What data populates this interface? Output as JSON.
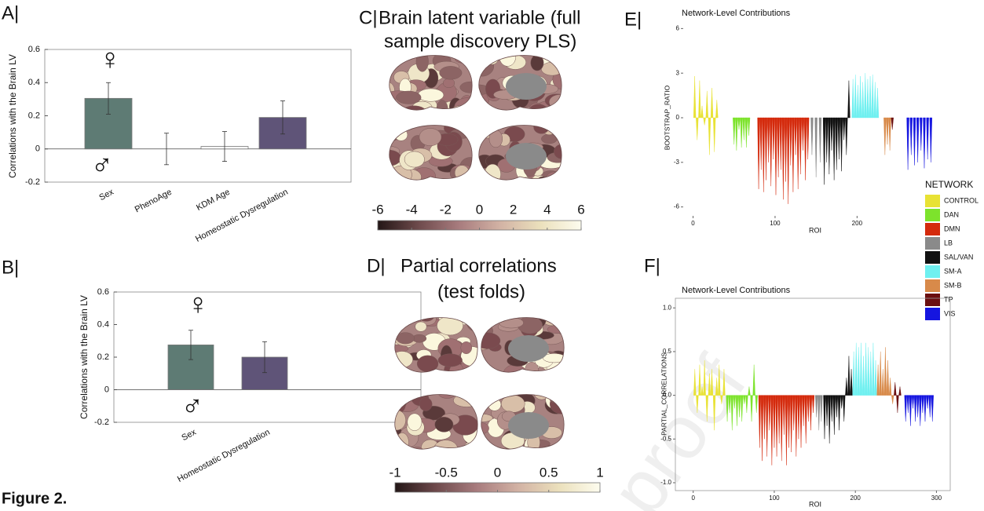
{
  "figure_label": "Figure 2.",
  "watermark": "proof",
  "chart_data": [
    {
      "panel_label": "A|",
      "type": "bar",
      "ylabel": "Correlations with the Brain LV",
      "categories": [
        "Sex",
        "PhenoAge",
        "KDM Age",
        "Homeostatic Dysregulation"
      ],
      "values": [
        0.305,
        0,
        0.015,
        0.19
      ],
      "errors": [
        0.095,
        0.095,
        0.09,
        0.1
      ],
      "colors": [
        "#5e7b74",
        "#ffffff",
        "#ffffff",
        "#5f5478"
      ],
      "ylim": [
        -0.2,
        0.6
      ],
      "yticks": [
        -0.2,
        0,
        0.2,
        0.4,
        0.6
      ],
      "annotations": [
        "♀",
        "♂"
      ]
    },
    {
      "panel_label": "B|",
      "type": "bar",
      "ylabel": "Correlations with the Brain LV",
      "categories": [
        "Sex",
        "Homeostatic Dysregulation"
      ],
      "values": [
        0.275,
        0.2
      ],
      "errors": [
        0.09,
        0.095
      ],
      "colors": [
        "#5e7b74",
        "#5f5478"
      ],
      "ylim": [
        -0.2,
        0.6
      ],
      "yticks": [
        -0.2,
        0,
        0.2,
        0.4,
        0.6
      ],
      "annotations": [
        "♀",
        "♂"
      ]
    },
    {
      "panel_label": "C|",
      "type": "colorbar",
      "title_lines": [
        "Brain latent variable (full",
        "sample discovery PLS)"
      ],
      "xlim": [
        -6,
        6
      ],
      "xticks": [
        -6,
        -4,
        -2,
        0,
        2,
        4,
        6
      ],
      "colormap": [
        "#231616",
        "#6e4a4c",
        "#a87c7e",
        "#d2b2a4",
        "#ebe0bc",
        "#fdfcee"
      ]
    },
    {
      "panel_label": "D|",
      "type": "colorbar",
      "title_lines": [
        "Partial correlations",
        "(test folds)"
      ],
      "xlim": [
        -1,
        1
      ],
      "xticks": [
        -1,
        -0.5,
        0,
        0.5,
        1
      ],
      "colormap": [
        "#231616",
        "#6e4a4c",
        "#a87c7e",
        "#d2b2a4",
        "#ebe0bc",
        "#fdfcee"
      ]
    },
    {
      "panel_label": "E|",
      "type": "area",
      "title": "Network-Level Contributions",
      "xlabel": "ROI",
      "ylabel": "BOOTSTRAP_RATIO",
      "xlim": [
        -12,
        305
      ],
      "ylim": [
        -6.6,
        6.6
      ],
      "xticks": [
        0,
        100,
        200
      ],
      "yticks": [
        -6,
        -3,
        0,
        3,
        6
      ],
      "legend_title": "NETWORK",
      "legend": "right",
      "frame": false,
      "series": [
        {
          "name": "CONTROL",
          "color": "#e8e234",
          "x": [
            2,
            5,
            8,
            11,
            14,
            17,
            20,
            23,
            26,
            29
          ],
          "values": [
            2.8,
            -1.5,
            2.5,
            0.8,
            -0.5,
            1.8,
            -2.5,
            2.0,
            -2.3,
            1.2
          ]
        },
        {
          "name": "DAN",
          "color": "#7de32c",
          "x": [
            50,
            53,
            56,
            59,
            62,
            65,
            68
          ],
          "values": [
            -1.8,
            -2.2,
            -0.8,
            -2.0,
            -1.5,
            -2.0,
            -1.2
          ]
        },
        {
          "name": "DMN",
          "color": "#d42a0c",
          "x": [
            80,
            83,
            86,
            89,
            92,
            95,
            98,
            101,
            104,
            107,
            110,
            113,
            116,
            119,
            122,
            125,
            128,
            131,
            134,
            137,
            140
          ],
          "values": [
            -4.8,
            -3.5,
            -5.0,
            -4.2,
            -3.0,
            -4.6,
            -2.8,
            -5.2,
            -4.0,
            -3.5,
            -5.5,
            -4.3,
            -5.8,
            -3.2,
            -5.0,
            -2.5,
            -4.8,
            -3.8,
            -2.2,
            -4.2,
            -2.8
          ]
        },
        {
          "name": "LB",
          "color": "#8a8a8a",
          "x": [
            145,
            150,
            155
          ],
          "values": [
            -2.5,
            -4.0,
            -3.0
          ]
        },
        {
          "name": "SAL/VAN",
          "color": "#111111",
          "x": [
            160,
            163,
            166,
            169,
            172,
            175,
            178,
            181,
            184,
            187,
            190
          ],
          "values": [
            -4.5,
            -3.0,
            -3.8,
            -2.2,
            -4.2,
            -3.5,
            -2.8,
            -3.6,
            -1.5,
            -2.5,
            2.5
          ]
        },
        {
          "name": "SM-A",
          "color": "#6ff0f0",
          "x": [
            195,
            198,
            201,
            204,
            207,
            210,
            213,
            216,
            219,
            222,
            225
          ],
          "values": [
            2.6,
            2.9,
            2.2,
            2.8,
            2.4,
            3.0,
            2.6,
            2.8,
            2.9,
            2.4,
            2.0
          ]
        },
        {
          "name": "SM-B",
          "color": "#d88a4a",
          "x": [
            234,
            237,
            240
          ],
          "values": [
            -2.5,
            -1.8,
            -2.2
          ]
        },
        {
          "name": "TP",
          "color": "#6b0f0f",
          "x": [
            243
          ],
          "values": [
            -0.8
          ]
        },
        {
          "name": "VIS",
          "color": "#1515e0",
          "x": [
            262,
            266,
            270,
            274,
            278,
            282,
            286,
            290
          ],
          "values": [
            -3.5,
            -2.5,
            -3.2,
            -3.0,
            -2.2,
            -3.4,
            -2.8,
            -3.0
          ]
        }
      ]
    },
    {
      "panel_label": "F|",
      "type": "area",
      "title": "Network-Level Contributions",
      "xlabel": "ROI",
      "ylabel": "PARTIAL_CORRELATIONS",
      "xlim": [
        -22,
        317
      ],
      "ylim": [
        -1.09,
        1.11
      ],
      "xticks": [
        0,
        100,
        200,
        300
      ],
      "yticks": [
        {
          "value": -1,
          "label": "-1.0"
        },
        {
          "value": -0.5,
          "label": "-0.5"
        },
        {
          "value": 0,
          "label": "0.0"
        },
        {
          "value": 0.5,
          "label": "0.5"
        },
        {
          "value": 1,
          "label": "1.0"
        }
      ],
      "frame": true,
      "series": [
        {
          "color": "#e8e234",
          "x": [
            2,
            5,
            8,
            11,
            14,
            17,
            20,
            23,
            26,
            29,
            32,
            35,
            38
          ],
          "values": [
            0.3,
            -0.2,
            0.35,
            0.1,
            0.4,
            -0.3,
            0.25,
            0.3,
            -0.4,
            0.2,
            0.35,
            -0.1,
            0.3
          ]
        },
        {
          "color": "#7de32c",
          "x": [
            42,
            45,
            48,
            51,
            54,
            57,
            60,
            63,
            66,
            69,
            72,
            75,
            78
          ],
          "values": [
            -0.3,
            -0.2,
            -0.4,
            -0.15,
            -0.35,
            -0.25,
            -0.3,
            -0.1,
            -0.2,
            0.1,
            -0.3,
            0.35,
            -0.2
          ]
        },
        {
          "color": "#d42a0c",
          "x": [
            82,
            85,
            88,
            91,
            94,
            97,
            100,
            103,
            106,
            109,
            112,
            115,
            118,
            121,
            124,
            127,
            130,
            133,
            136,
            139,
            142,
            145,
            148
          ],
          "values": [
            -0.6,
            -0.75,
            -0.5,
            -0.7,
            -0.4,
            -0.8,
            -0.6,
            -0.7,
            -0.55,
            -0.75,
            -0.45,
            -0.8,
            -0.6,
            -0.65,
            -0.4,
            -0.7,
            -0.5,
            -0.6,
            -0.35,
            -0.55,
            -0.3,
            -0.4,
            -0.2
          ]
        },
        {
          "color": "#8a8a8a",
          "x": [
            152,
            155,
            158
          ],
          "values": [
            -0.25,
            -0.4,
            -0.3
          ]
        },
        {
          "color": "#111111",
          "x": [
            162,
            165,
            168,
            171,
            174,
            177,
            180,
            183,
            186,
            189,
            192,
            195
          ],
          "values": [
            -0.5,
            -0.35,
            -0.55,
            -0.3,
            -0.45,
            -0.25,
            -0.4,
            -0.15,
            -0.3,
            0.2,
            0.45,
            0.3
          ]
        },
        {
          "color": "#6ff0f0",
          "x": [
            198,
            201,
            204,
            207,
            210,
            213,
            216,
            219,
            222,
            225
          ],
          "values": [
            0.5,
            0.6,
            0.55,
            0.6,
            0.45,
            0.6,
            0.55,
            0.5,
            0.6,
            0.4
          ]
        },
        {
          "color": "#d88a4a",
          "x": [
            228,
            231,
            234,
            237,
            240,
            243,
            246
          ],
          "values": [
            0.35,
            0.5,
            0.3,
            0.55,
            0.4,
            0.2,
            -0.1
          ]
        },
        {
          "color": "#6b0f0f",
          "x": [
            249,
            252,
            255
          ],
          "values": [
            0.15,
            -0.2,
            0.1
          ]
        },
        {
          "color": "#1515e0",
          "x": [
            262,
            265,
            268,
            271,
            274,
            277,
            280,
            283,
            286,
            289,
            292,
            295
          ],
          "values": [
            -0.3,
            -0.2,
            -0.35,
            -0.15,
            -0.3,
            -0.25,
            -0.35,
            -0.2,
            -0.3,
            -0.15,
            -0.25,
            -0.3
          ]
        }
      ]
    }
  ]
}
